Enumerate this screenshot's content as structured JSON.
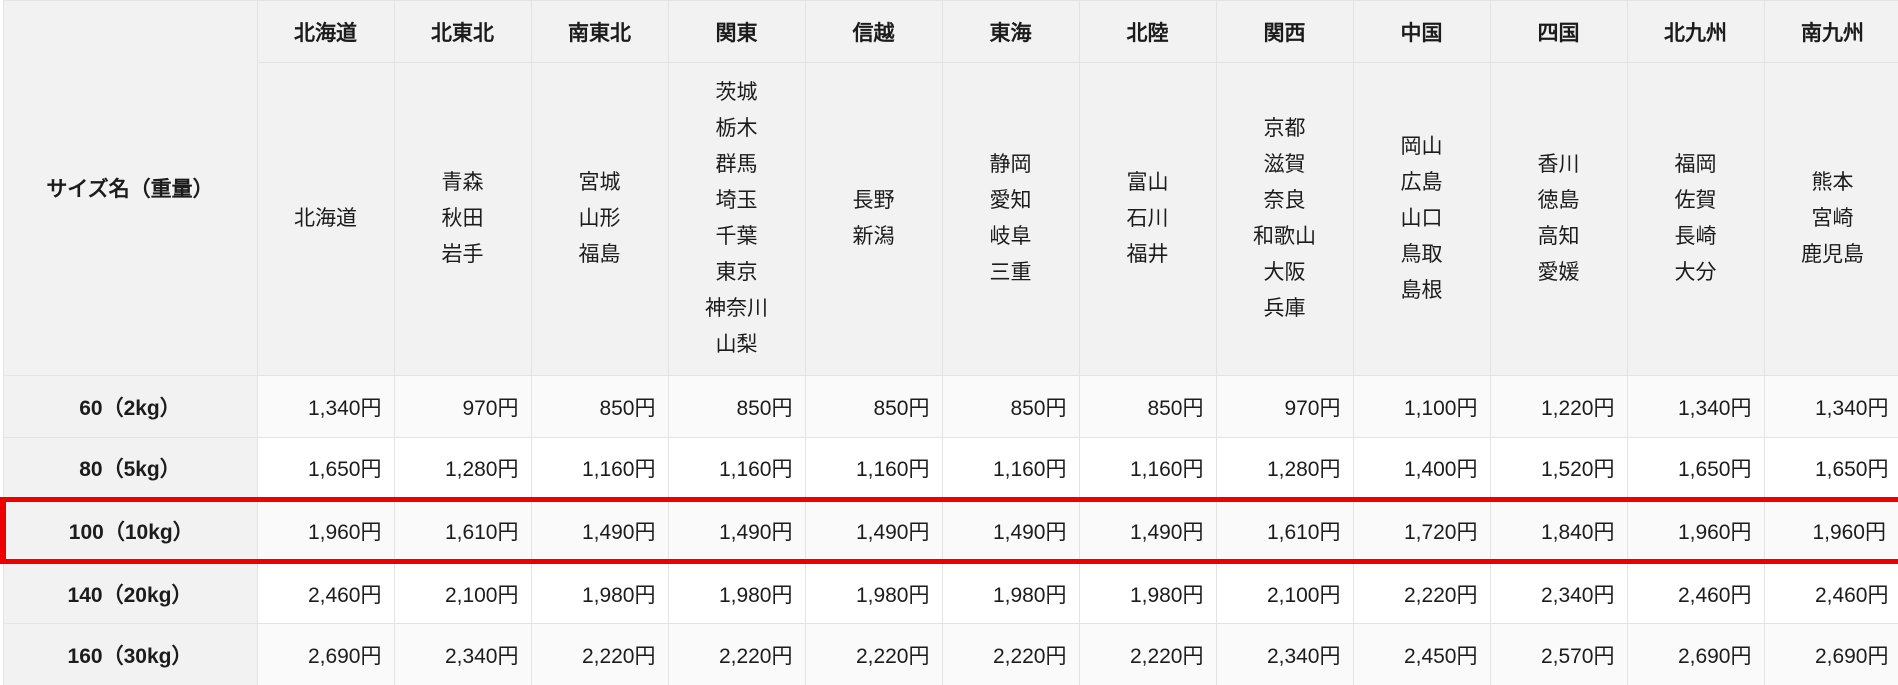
{
  "table": {
    "corner_label": "サイズ名（重量）"
  },
  "regions": [
    {
      "name": "北海道",
      "prefectures": [
        "北海道"
      ]
    },
    {
      "name": "北東北",
      "prefectures": [
        "青森",
        "秋田",
        "岩手"
      ]
    },
    {
      "name": "南東北",
      "prefectures": [
        "宮城",
        "山形",
        "福島"
      ]
    },
    {
      "name": "関東",
      "prefectures": [
        "茨城",
        "栃木",
        "群馬",
        "埼玉",
        "千葉",
        "東京",
        "神奈川",
        "山梨"
      ]
    },
    {
      "name": "信越",
      "prefectures": [
        "長野",
        "新潟"
      ]
    },
    {
      "name": "東海",
      "prefectures": [
        "静岡",
        "愛知",
        "岐阜",
        "三重"
      ]
    },
    {
      "name": "北陸",
      "prefectures": [
        "富山",
        "石川",
        "福井"
      ]
    },
    {
      "name": "関西",
      "prefectures": [
        "京都",
        "滋賀",
        "奈良",
        "和歌山",
        "大阪",
        "兵庫"
      ]
    },
    {
      "name": "中国",
      "prefectures": [
        "岡山",
        "広島",
        "山口",
        "鳥取",
        "島根"
      ]
    },
    {
      "name": "四国",
      "prefectures": [
        "香川",
        "徳島",
        "高知",
        "愛媛"
      ]
    },
    {
      "name": "北九州",
      "prefectures": [
        "福岡",
        "佐賀",
        "長崎",
        "大分"
      ]
    },
    {
      "name": "南九州",
      "prefectures": [
        "熊本",
        "宮崎",
        "鹿児島"
      ]
    }
  ],
  "rows": [
    {
      "label": "60（2kg）",
      "highlighted": false,
      "prices": [
        "1,340円",
        "970円",
        "850円",
        "850円",
        "850円",
        "850円",
        "850円",
        "970円",
        "1,100円",
        "1,220円",
        "1,340円",
        "1,340円"
      ]
    },
    {
      "label": "80（5kg）",
      "highlighted": false,
      "prices": [
        "1,650円",
        "1,280円",
        "1,160円",
        "1,160円",
        "1,160円",
        "1,160円",
        "1,160円",
        "1,280円",
        "1,400円",
        "1,520円",
        "1,650円",
        "1,650円"
      ]
    },
    {
      "label": "100（10kg）",
      "highlighted": true,
      "prices": [
        "1,960円",
        "1,610円",
        "1,490円",
        "1,490円",
        "1,490円",
        "1,490円",
        "1,490円",
        "1,610円",
        "1,720円",
        "1,840円",
        "1,960円",
        "1,960円"
      ]
    },
    {
      "label": "140（20kg）",
      "highlighted": false,
      "prices": [
        "2,460円",
        "2,100円",
        "1,980円",
        "1,980円",
        "1,980円",
        "1,980円",
        "1,980円",
        "2,100円",
        "2,220円",
        "2,340円",
        "2,460円",
        "2,460円"
      ]
    },
    {
      "label": "160（30kg）",
      "highlighted": false,
      "prices": [
        "2,690円",
        "2,340円",
        "2,220円",
        "2,220円",
        "2,220円",
        "2,220円",
        "2,220円",
        "2,340円",
        "2,450円",
        "2,570円",
        "2,690円",
        "2,690円"
      ]
    }
  ],
  "colors": {
    "highlight_border": "#ee0000",
    "header_bg": "#f2f2f2",
    "stripe_bg": "#fafafa",
    "cell_border": "#e3e3e3",
    "text": "#1c1c1c"
  }
}
